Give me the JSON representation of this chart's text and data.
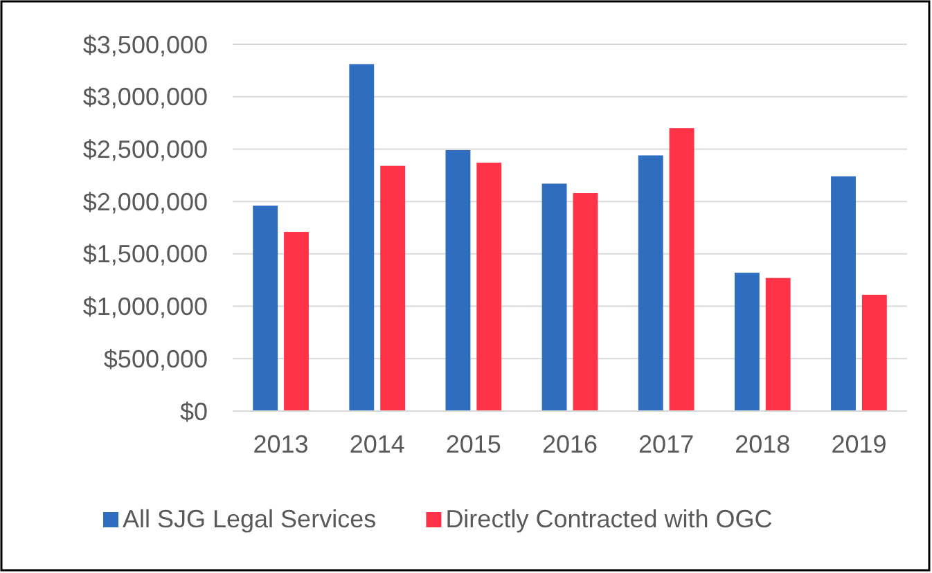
{
  "chart_data": {
    "type": "bar",
    "categories": [
      "2013",
      "2014",
      "2015",
      "2016",
      "2017",
      "2018",
      "2019"
    ],
    "series": [
      {
        "name": "All SJG Legal Services",
        "color": "#2f6ebe",
        "values": [
          1960000,
          3310000,
          2490000,
          2170000,
          2440000,
          1320000,
          2240000
        ]
      },
      {
        "name": "Directly Contracted with OGC",
        "color": "#fe3347",
        "values": [
          1710000,
          2340000,
          2370000,
          2080000,
          2700000,
          1270000,
          1110000
        ]
      }
    ],
    "ylim": [
      0,
      3500000
    ],
    "yticks": [
      {
        "value": 0,
        "label": "$0"
      },
      {
        "value": 500000,
        "label": "$500,000"
      },
      {
        "value": 1000000,
        "label": "$1,000,000"
      },
      {
        "value": 1500000,
        "label": "$1,500,000"
      },
      {
        "value": 2000000,
        "label": "$2,000,000"
      },
      {
        "value": 2500000,
        "label": "$2,500,000"
      },
      {
        "value": 3000000,
        "label": "$3,000,000"
      },
      {
        "value": 3500000,
        "label": "$3,500,000"
      }
    ],
    "grid": "y",
    "legend": "bottom"
  }
}
